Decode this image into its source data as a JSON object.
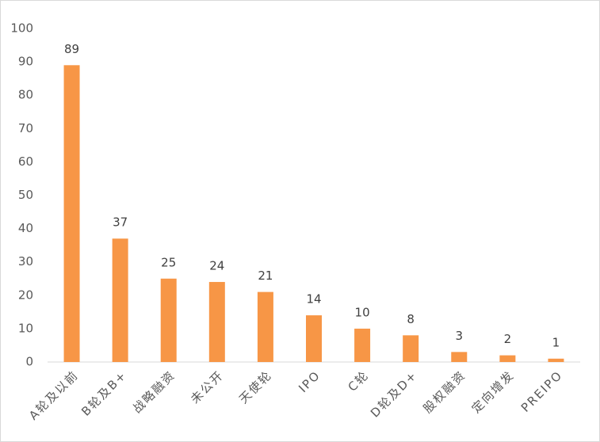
{
  "chart_data": {
    "type": "bar",
    "categories": [
      "A轮及以前",
      "B轮及B+",
      "战略融资",
      "未公开",
      "天使轮",
      "IPO",
      "C轮",
      "D轮及D+",
      "股权融资",
      "定向增发",
      "PREIPO"
    ],
    "values": [
      89,
      37,
      25,
      24,
      21,
      14,
      10,
      8,
      3,
      2,
      1
    ],
    "color": "#f79646",
    "ylim": [
      0,
      100
    ],
    "yticks": [
      0,
      10,
      20,
      30,
      40,
      50,
      60,
      70,
      80,
      90,
      100
    ],
    "grid": false
  }
}
